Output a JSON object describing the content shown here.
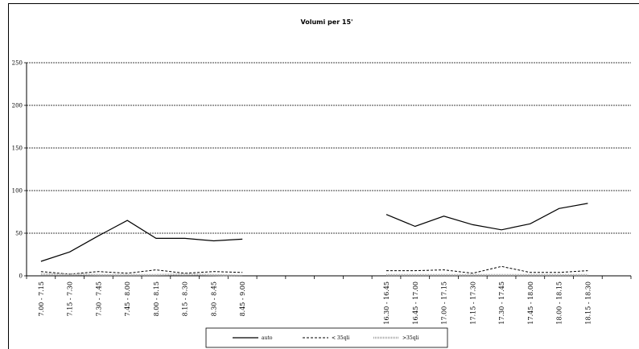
{
  "chart_data": {
    "type": "line",
    "title": "Volumi per 15'",
    "xlabel": "",
    "ylabel": "",
    "ylim": [
      0,
      250
    ],
    "yticks": [
      0,
      50,
      100,
      150,
      200,
      250
    ],
    "grid": true,
    "legend_position": "bottom",
    "categories": [
      "7.00 - 7.15",
      "7.15 - 7.30",
      "7.30 - 7.45",
      "7.45 - 8.00",
      "8.00 - 8.15",
      "8.15 - 8.30",
      "8.30 - 8.45",
      "8.45 - 9.00",
      "",
      "",
      "",
      "",
      "16.30 - 16.45",
      "16.45 - 17.00",
      "17.00 - 17.15",
      "17.15 - 17.30",
      "17.30 - 17.45",
      "17.45 - 18.00",
      "18.00 - 18.15",
      "18.15 - 18.30",
      ""
    ],
    "series": [
      {
        "name": "auto",
        "style": "solid",
        "color": "#000000",
        "values": [
          17,
          28,
          47,
          65,
          44,
          44,
          41,
          43,
          null,
          null,
          null,
          null,
          72,
          58,
          70,
          60,
          54,
          61,
          79,
          85,
          null
        ]
      },
      {
        "name": "< 35qli",
        "style": "dashed",
        "color": "#000000",
        "values": [
          5,
          2,
          5,
          3,
          7,
          3,
          5,
          4,
          null,
          null,
          null,
          null,
          6,
          6,
          7,
          3,
          11,
          4,
          4,
          6,
          null
        ]
      },
      {
        "name": ">35qli",
        "style": "hatched",
        "color": "#999999",
        "values": [
          2,
          2,
          1,
          1,
          1,
          2,
          1,
          0,
          null,
          null,
          null,
          null,
          1,
          1,
          1,
          1,
          1,
          1,
          1,
          1,
          null
        ]
      }
    ]
  }
}
